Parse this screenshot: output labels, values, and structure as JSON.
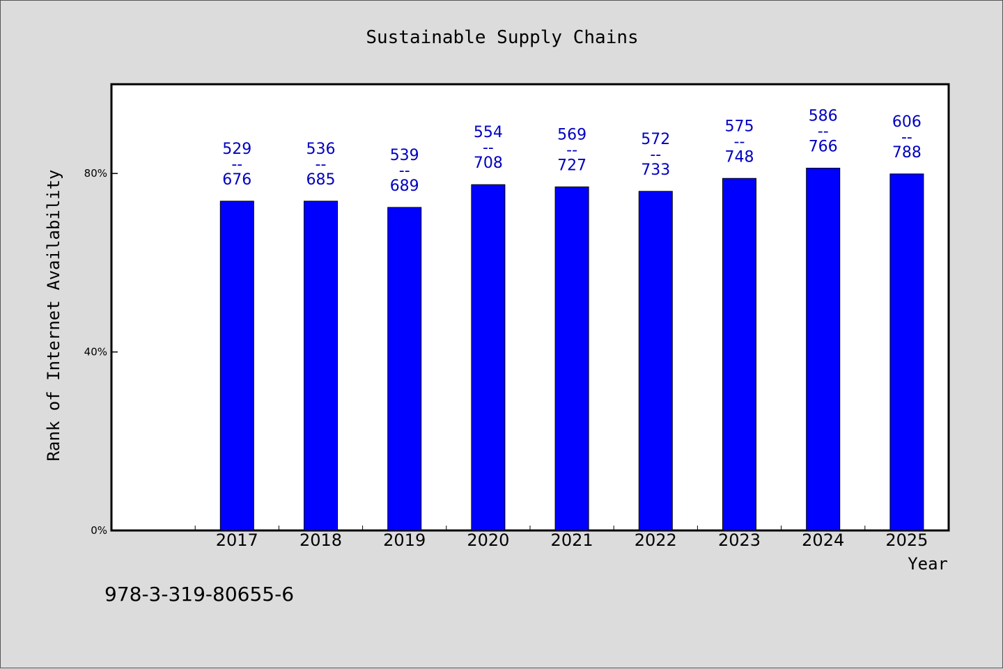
{
  "chart_data": {
    "type": "bar",
    "title": "Sustainable Supply Chains",
    "xlabel": "Year",
    "ylabel": "Rank of Internet Availability",
    "ylim": [
      0,
      100
    ],
    "yticks": [
      0,
      40,
      80
    ],
    "ytick_labels": [
      "0%",
      "40%",
      "80%"
    ],
    "categories": [
      "2017",
      "2018",
      "2019",
      "2020",
      "2021",
      "2022",
      "2023",
      "2024",
      "2025"
    ],
    "values": [
      73.8,
      73.8,
      72.4,
      77.5,
      77.0,
      76.0,
      78.9,
      81.2,
      79.9
    ],
    "data_labels": [
      {
        "top": "529",
        "sep": "--",
        "bottom": "676"
      },
      {
        "top": "536",
        "sep": "--",
        "bottom": "685"
      },
      {
        "top": "539",
        "sep": "--",
        "bottom": "689"
      },
      {
        "top": "554",
        "sep": "--",
        "bottom": "708"
      },
      {
        "top": "569",
        "sep": "--",
        "bottom": "727"
      },
      {
        "top": "572",
        "sep": "--",
        "bottom": "733"
      },
      {
        "top": "575",
        "sep": "--",
        "bottom": "748"
      },
      {
        "top": "586",
        "sep": "--",
        "bottom": "766"
      },
      {
        "top": "606",
        "sep": "--",
        "bottom": "788"
      }
    ],
    "bar_color": "#0000ff",
    "label_color": "#0000c0",
    "grid": false,
    "legend": "none"
  },
  "footer": {
    "code": "978-3-319-80655-6"
  }
}
